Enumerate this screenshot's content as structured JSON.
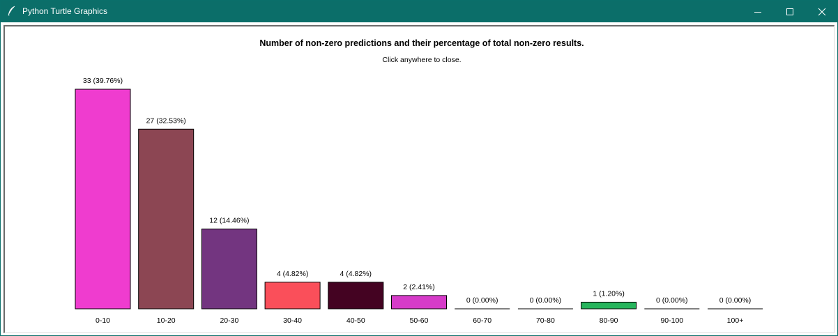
{
  "window": {
    "title": "Python Turtle Graphics",
    "icons": {
      "app": "feather-icon",
      "minimize": "minimize-icon",
      "maximize": "maximize-icon",
      "close": "close-icon"
    }
  },
  "colors": {
    "titlebar": "#0b6e69"
  },
  "chart_data": {
    "type": "bar",
    "title": "Number of non-zero predictions and their percentage of total non-zero results.",
    "subtitle": "Click anywhere to close.",
    "categories": [
      "0-10",
      "10-20",
      "20-30",
      "30-40",
      "40-50",
      "50-60",
      "60-70",
      "70-80",
      "80-90",
      "90-100",
      "100+"
    ],
    "values": [
      33,
      27,
      12,
      4,
      4,
      2,
      0,
      0,
      1,
      0,
      0
    ],
    "labels": [
      "33 (39.76%)",
      "27 (32.53%)",
      "12 (14.46%)",
      "4 (4.82%)",
      "4 (4.82%)",
      "2 (2.41%)",
      "0 (0.00%)",
      "0 (0.00%)",
      "1 (1.20%)",
      "0 (0.00%)",
      "0 (0.00%)"
    ],
    "colors": [
      "#ef3ccf",
      "#8c4653",
      "#733580",
      "#fa4f5a",
      "#440322",
      "#d63bc9",
      "#ffffff",
      "#ffffff",
      "#26b55c",
      "#ffffff",
      "#ffffff"
    ],
    "grid": false,
    "legend": "none"
  }
}
